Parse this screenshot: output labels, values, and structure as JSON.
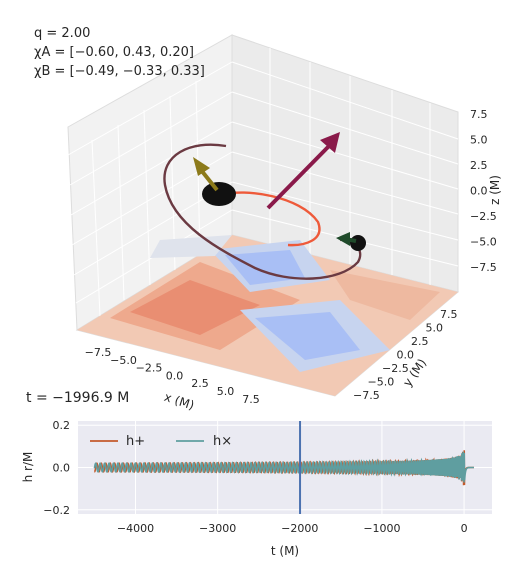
{
  "params": {
    "q": "q = 2.00",
    "chiA": "χA = [−0.60, 0.43, 0.20]",
    "chiB": "χB = [−0.49, −0.33, 0.33]"
  },
  "time_label": "t = −1996.9 M",
  "colors": {
    "h_plus": "#c45a2c",
    "h_cross": "#5f9ea0",
    "time_marker": "#4c72b0",
    "track": "#6b3a42",
    "orbit_a": "#ee5a3a",
    "spin_a": "#8c7a1a",
    "spin_b": "#1f4a2a",
    "L_vec": "#8a1a4a",
    "panel_bg": "#eaeaf2"
  },
  "chart_data": [
    {
      "type": "3d-orbit",
      "zlabel": "z (M)",
      "xlabel": "x (M)",
      "ylabel": "y (M)",
      "x_ticks": [
        "−7.5",
        "−5.0",
        "−2.5",
        "0.0",
        "2.5",
        "5.0",
        "7.5"
      ],
      "y_ticks": [
        "7.5",
        "5.0",
        "2.5",
        "0.0",
        "−2.5",
        "−5.0",
        "−7.5"
      ],
      "z_ticks": [
        "7.5",
        "5.0",
        "2.5",
        "0.0",
        "−2.5",
        "−5.0",
        "−7.5"
      ],
      "xlim": [
        -9,
        9
      ],
      "ylim": [
        -9,
        9
      ],
      "zlim": [
        -9,
        9
      ]
    },
    {
      "type": "line",
      "xlabel": "t (M)",
      "ylabel": "h r/M",
      "xlim": [
        -4700,
        340
      ],
      "ylim": [
        -0.22,
        0.22
      ],
      "x_ticks": [
        -4000,
        -3000,
        -2000,
        -1000,
        0
      ],
      "x_tick_labels": [
        "−4000",
        "−3000",
        "−2000",
        "−1000",
        "0"
      ],
      "y_ticks": [
        -0.2,
        0.0,
        0.2
      ],
      "y_tick_labels": [
        "−0.2",
        "0.0",
        "0.2"
      ],
      "current_time": -1996.9,
      "series": [
        {
          "name": "h+",
          "amplitude_start": 0.02,
          "t_start": -4500,
          "t_merger": 0,
          "peak_amplitude": 0.13
        },
        {
          "name": "h×",
          "amplitude_start": 0.02,
          "t_start": -4500,
          "t_merger": 0,
          "peak_amplitude": 0.13
        }
      ],
      "legend": "top-left"
    }
  ]
}
